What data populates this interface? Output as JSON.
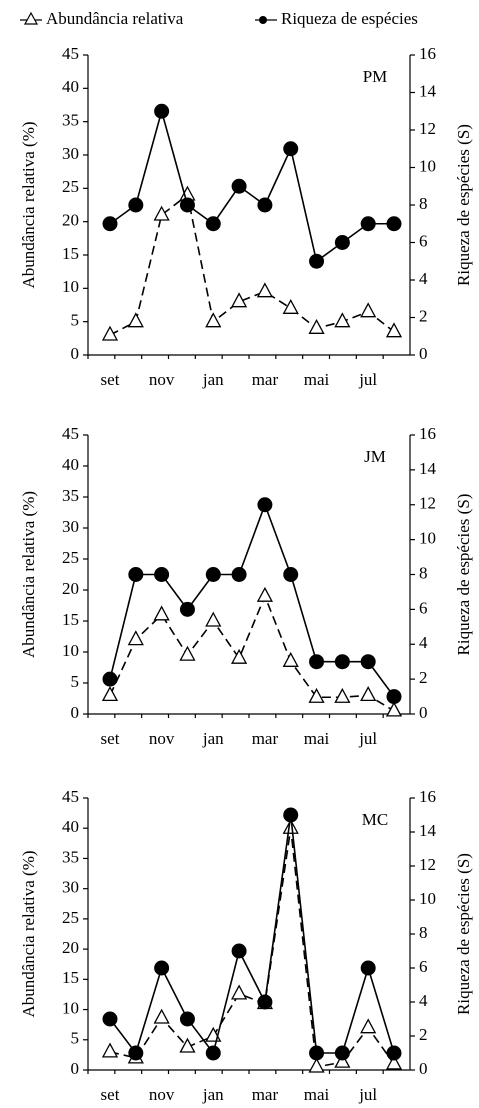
{
  "chart_data": [
    {
      "type": "line",
      "annotation": "PM",
      "categories": [
        "set",
        null,
        "nov",
        null,
        "jan",
        null,
        "mar",
        null,
        "mai",
        null,
        "jul",
        null
      ],
      "ylabel": "Abundância relativa (%)",
      "y2label": "Riqueza de espécies (S)",
      "ylim": [
        0,
        45
      ],
      "yticks": [
        0,
        5,
        10,
        15,
        20,
        25,
        30,
        35,
        40,
        45
      ],
      "y2lim": [
        0,
        16
      ],
      "y2ticks": [
        0,
        2,
        4,
        6,
        8,
        10,
        12,
        14,
        16
      ],
      "series": [
        {
          "name": "Abundância relativa",
          "color": "#000000",
          "line_style": "dashed",
          "marker": "triangle",
          "values": [
            3,
            5,
            21,
            24,
            5,
            8,
            9.5,
            7,
            4,
            5,
            6.5,
            3.5
          ]
        },
        {
          "name": "Riqueza de espécies",
          "color": "#000000",
          "line_style": "solid",
          "marker": "circle",
          "axis": "y2",
          "values": [
            7,
            8,
            13,
            8,
            7,
            9,
            8,
            11,
            5,
            6,
            7,
            7
          ]
        }
      ]
    },
    {
      "type": "line",
      "annotation": "JM",
      "categories": [
        "set",
        null,
        "nov",
        null,
        "jan",
        null,
        "mar",
        null,
        "mai",
        null,
        "jul",
        null
      ],
      "ylabel": "Abundância relativa (%)",
      "y2label": "Riqueza de espécies (S)",
      "ylim": [
        0,
        45
      ],
      "yticks": [
        0,
        5,
        10,
        15,
        20,
        25,
        30,
        35,
        40,
        45
      ],
      "y2lim": [
        0,
        16
      ],
      "y2ticks": [
        0,
        2,
        4,
        6,
        8,
        10,
        12,
        14,
        16
      ],
      "series": [
        {
          "color": "#000000",
          "line_style": "dashed",
          "marker": "triangle",
          "values": [
            3,
            12,
            16,
            9.5,
            15,
            9,
            19,
            8.5,
            2.7,
            2.7,
            3,
            0.5
          ]
        },
        {
          "color": "#000000",
          "line_style": "solid",
          "marker": "circle",
          "axis": "y2",
          "values": [
            2,
            8,
            8,
            6,
            8,
            8,
            12,
            8,
            3,
            3,
            3,
            1
          ]
        }
      ]
    },
    {
      "type": "line",
      "annotation": "MC",
      "categories": [
        "set",
        null,
        "nov",
        null,
        "jan",
        null,
        "mar",
        null,
        "mai",
        null,
        "jul",
        null
      ],
      "ylabel": "Abundância relativa (%)",
      "y2label": "Riqueza de espécies (S)",
      "ylim": [
        0,
        45
      ],
      "yticks": [
        0,
        5,
        10,
        15,
        20,
        25,
        30,
        35,
        40,
        45
      ],
      "y2lim": [
        0,
        16
      ],
      "y2ticks": [
        0,
        2,
        4,
        6,
        8,
        10,
        12,
        14,
        16
      ],
      "series": [
        {
          "color": "#000000",
          "line_style": "dashed",
          "marker": "triangle",
          "values": [
            3,
            2,
            8.6,
            3.8,
            5.6,
            12.6,
            11,
            40,
            0.5,
            1.3,
            7,
            1
          ]
        },
        {
          "color": "#000000",
          "line_style": "solid",
          "marker": "circle",
          "axis": "y2",
          "values": [
            3,
            1,
            6,
            3,
            1,
            7,
            4,
            15,
            1,
            1,
            6,
            1
          ]
        }
      ]
    }
  ]
}
